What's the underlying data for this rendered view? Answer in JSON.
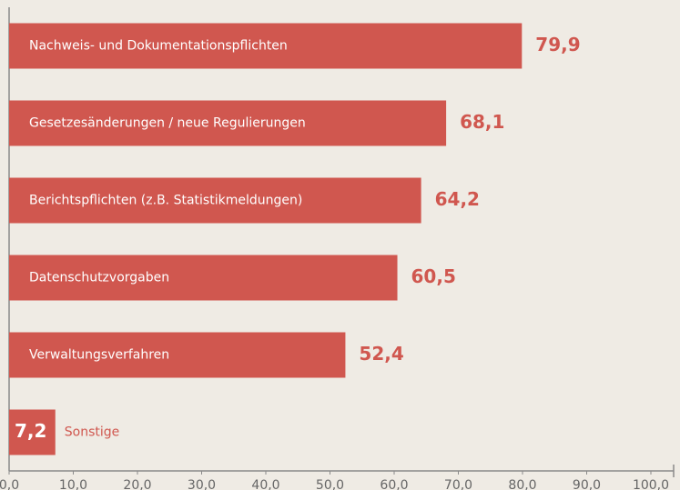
{
  "chart_data": {
    "type": "bar",
    "orientation": "horizontal",
    "categories": [
      "Nachweis- und Dokumentationspflichten",
      "Gesetzesänderungen / neue Regulierungen",
      "Berichtspflichten (z.B. Statistikmeldungen)",
      "Datenschutzvorgaben",
      "Verwaltungsverfahren",
      "Sonstige"
    ],
    "values": [
      79.9,
      68.1,
      64.2,
      60.5,
      52.4,
      7.2
    ],
    "value_labels": [
      "79,9",
      "68,1",
      "64,2",
      "60,5",
      "52,4",
      "7,2"
    ],
    "color": "#d0574f",
    "xlim": [
      0,
      100
    ],
    "xticks": [
      {
        "value": 0,
        "label": "0,0"
      },
      {
        "value": 10,
        "label": "10,0"
      },
      {
        "value": 20,
        "label": "20,0"
      },
      {
        "value": 30,
        "label": "30,0"
      },
      {
        "value": 40,
        "label": "40,0"
      },
      {
        "value": 50,
        "label": "50,0"
      },
      {
        "value": 60,
        "label": "60,0"
      },
      {
        "value": 70,
        "label": "70,0"
      },
      {
        "value": 80,
        "label": "80,0"
      },
      {
        "value": 90,
        "label": "90,0"
      },
      {
        "value": 100,
        "label": "100,0"
      }
    ],
    "grid": false
  }
}
